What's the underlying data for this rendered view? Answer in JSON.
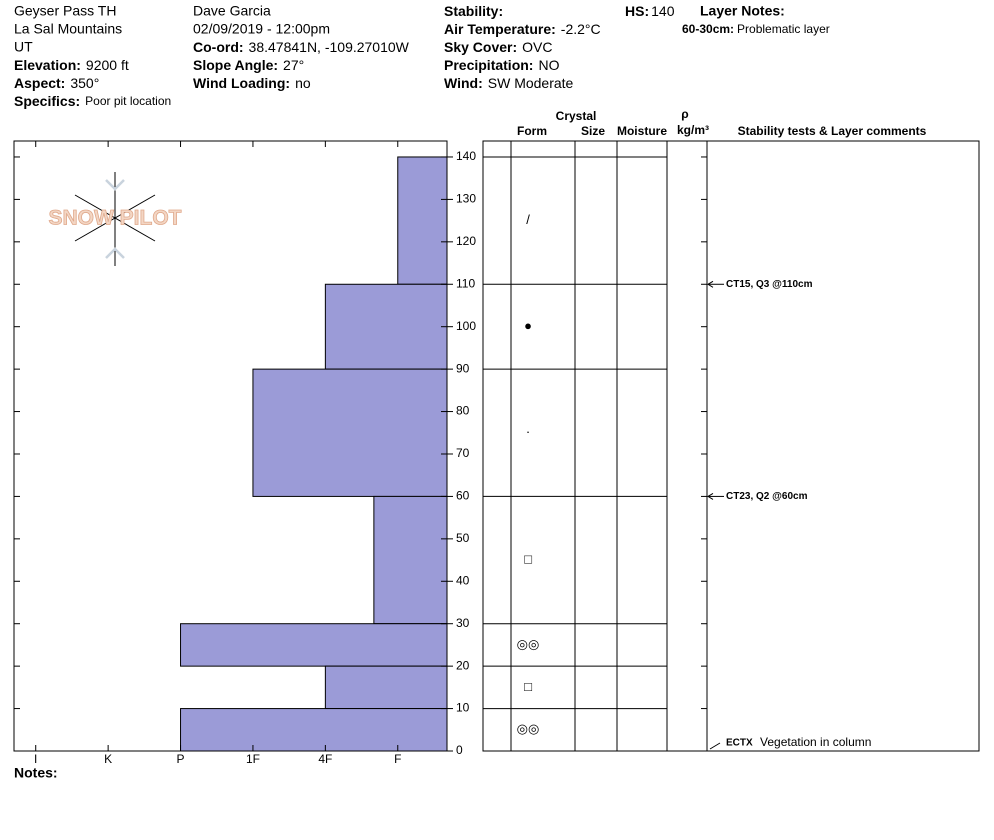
{
  "header": {
    "columns": [
      [
        {
          "text": "Geyser Pass TH"
        },
        {
          "text": "La Sal Mountains"
        },
        {
          "text": "UT"
        },
        {
          "label": "Elevation:",
          "value": "9200 ft"
        },
        {
          "label": "Aspect:",
          "value": "350°"
        },
        {
          "label": "Specifics:",
          "value": "Poor pit location"
        }
      ],
      [
        {
          "text": "Dave Garcia"
        },
        {
          "text": "02/09/2019 - 12:00pm"
        },
        {
          "label": "Co-ord:",
          "value": "38.47841N, -109.27010W"
        },
        {
          "label": "Slope Angle:",
          "value": "27°"
        },
        {
          "label": "Wind Loading:",
          "value": "no"
        }
      ],
      [
        {
          "label": "Stability:"
        },
        {
          "label": "Air Temperature:",
          "value": "-2.2°C"
        },
        {
          "label": "Sky Cover:",
          "value": "OVC"
        },
        {
          "label": "Precipitation:",
          "value": "NO"
        },
        {
          "label": "Wind:",
          "value": "SW Moderate"
        }
      ]
    ],
    "hs": {
      "label": "HS:",
      "value": "140"
    },
    "layer_notes": {
      "title": "Layer Notes:",
      "items": [
        {
          "label": "60-30cm:",
          "value": "Problematic layer"
        }
      ]
    }
  },
  "chart_data": {
    "type": "snow-profile",
    "logo": "SNOW PILOT",
    "ylim": [
      0,
      144
    ],
    "yticks": [
      0,
      10,
      20,
      30,
      40,
      50,
      60,
      70,
      80,
      90,
      100,
      110,
      120,
      130,
      140
    ],
    "xlim": [
      0.32,
      6.3
    ],
    "xticks": [
      {
        "value": 6,
        "label": "I"
      },
      {
        "value": 5,
        "label": "K"
      },
      {
        "value": 4,
        "label": "P"
      },
      {
        "value": 3,
        "label": "1F"
      },
      {
        "value": 2,
        "label": "4F"
      },
      {
        "value": 1,
        "label": "F"
      }
    ],
    "color": "#9b9bd7",
    "layers": [
      {
        "top": 140,
        "bottom": 110,
        "hardness": 1,
        "form": "/"
      },
      {
        "top": 110,
        "bottom": 90,
        "hardness": 2,
        "form": "●"
      },
      {
        "top": 90,
        "bottom": 60,
        "hardness": 3,
        "form": "·"
      },
      {
        "top": 60,
        "bottom": 30,
        "hardness": 1.33,
        "form": "□"
      },
      {
        "top": 30,
        "bottom": 20,
        "hardness": 4,
        "form": "◎◎"
      },
      {
        "top": 20,
        "bottom": 10,
        "hardness": 2,
        "form": "□"
      },
      {
        "top": 10,
        "bottom": 0,
        "hardness": 4,
        "form": "◎◎"
      }
    ],
    "column_headers": {
      "crystal": "Crystal",
      "form": "Form",
      "size": "Size",
      "moisture": "Moisture",
      "rho": "ρ",
      "density_unit": "kg/m³",
      "comments": "Stability tests & Layer comments"
    },
    "stability_tests": [
      {
        "depth": 110,
        "text": "CT15, Q3 @110cm"
      },
      {
        "depth": 60,
        "text": "CT23, Q2 @60cm"
      },
      {
        "depth": 0,
        "text": "ECTX",
        "comment": "Vegetation in column"
      }
    ],
    "notes_label": "Notes:"
  }
}
